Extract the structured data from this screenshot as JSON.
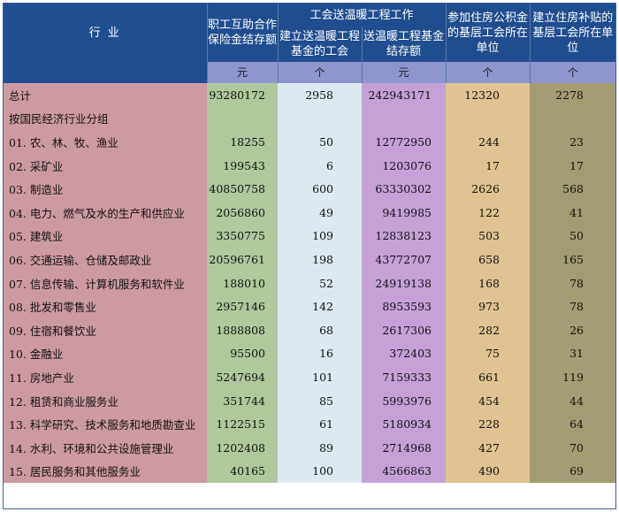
{
  "header": {
    "industry": "行    业",
    "mutual_aid": "职工互助合作保险金结存额",
    "group": "工会送温暖工程工作",
    "unions_with_fund": "建立送温暖工程基金的工会",
    "fund_balance": "送温暖工程基金结存额",
    "housing_fund_units": "参加住房公积金的基层工会所在单位",
    "housing_subsidy_units": "建立住房补贴的基层工会所在单位"
  },
  "units": [
    "元",
    "个",
    "元",
    "个",
    "个"
  ],
  "rows": [
    {
      "name": "总计",
      "c1": "93280172",
      "c2": "2958",
      "c3": "242943171",
      "c4": "12320",
      "c5": "2278"
    },
    {
      "name": "按国民经济行业分组",
      "c1": "",
      "c2": "",
      "c3": "",
      "c4": "",
      "c5": ""
    },
    {
      "name": "01. 农、林、牧、渔业",
      "c1": "18255",
      "c2": "50",
      "c3": "12772950",
      "c4": "244",
      "c5": "23"
    },
    {
      "name": "02. 采矿业",
      "c1": "199543",
      "c2": "6",
      "c3": "1203076",
      "c4": "17",
      "c5": "17"
    },
    {
      "name": "03. 制造业",
      "c1": "40850758",
      "c2": "600",
      "c3": "63330302",
      "c4": "2626",
      "c5": "568"
    },
    {
      "name": "04. 电力、燃气及水的生产和供应业",
      "c1": "2056860",
      "c2": "49",
      "c3": "9419985",
      "c4": "122",
      "c5": "41"
    },
    {
      "name": "05. 建筑业",
      "c1": "3350775",
      "c2": "109",
      "c3": "12838123",
      "c4": "503",
      "c5": "50"
    },
    {
      "name": "06. 交通运输、仓储及邮政业",
      "c1": "20596761",
      "c2": "198",
      "c3": "43772707",
      "c4": "658",
      "c5": "165"
    },
    {
      "name": "07. 信息传输、计算机服务和软件业",
      "c1": "188010",
      "c2": "52",
      "c3": "24919138",
      "c4": "168",
      "c5": "78"
    },
    {
      "name": "08. 批发和零售业",
      "c1": "2957146",
      "c2": "142",
      "c3": "8953593",
      "c4": "973",
      "c5": "78"
    },
    {
      "name": "09. 住宿和餐饮业",
      "c1": "1888808",
      "c2": "68",
      "c3": "2617306",
      "c4": "282",
      "c5": "26"
    },
    {
      "name": "10. 金融业",
      "c1": "95500",
      "c2": "16",
      "c3": "372403",
      "c4": "75",
      "c5": "31"
    },
    {
      "name": "11. 房地产业",
      "c1": "5247694",
      "c2": "101",
      "c3": "7159333",
      "c4": "661",
      "c5": "119"
    },
    {
      "name": "12. 租赁和商业服务业",
      "c1": "351744",
      "c2": "85",
      "c3": "5993976",
      "c4": "454",
      "c5": "44"
    },
    {
      "name": "13. 科学研究、技术服务和地质勘查业",
      "c1": "1122515",
      "c2": "61",
      "c3": "5180934",
      "c4": "228",
      "c5": "64"
    },
    {
      "name": "14. 水利、环境和公共设施管理业",
      "c1": "1202408",
      "c2": "89",
      "c3": "2714968",
      "c4": "427",
      "c5": "70"
    },
    {
      "name": "15. 居民服务和其他服务业",
      "c1": "40165",
      "c2": "100",
      "c3": "4566863",
      "c4": "490",
      "c5": "69"
    }
  ]
}
